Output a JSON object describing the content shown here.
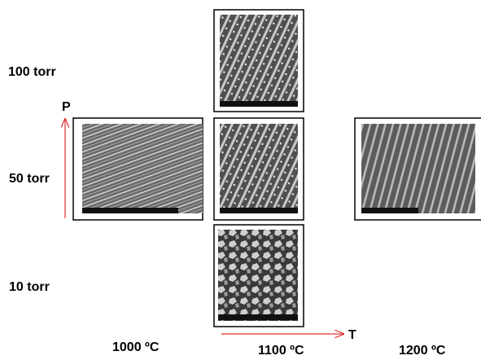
{
  "row_labels": [
    "100 torr",
    "50 torr",
    "10 torr"
  ],
  "column_labels": [
    "1000 ºC",
    "1100 ºC",
    "1200 ºC"
  ],
  "axes": {
    "pressure": "P",
    "temperature": "T"
  }
}
